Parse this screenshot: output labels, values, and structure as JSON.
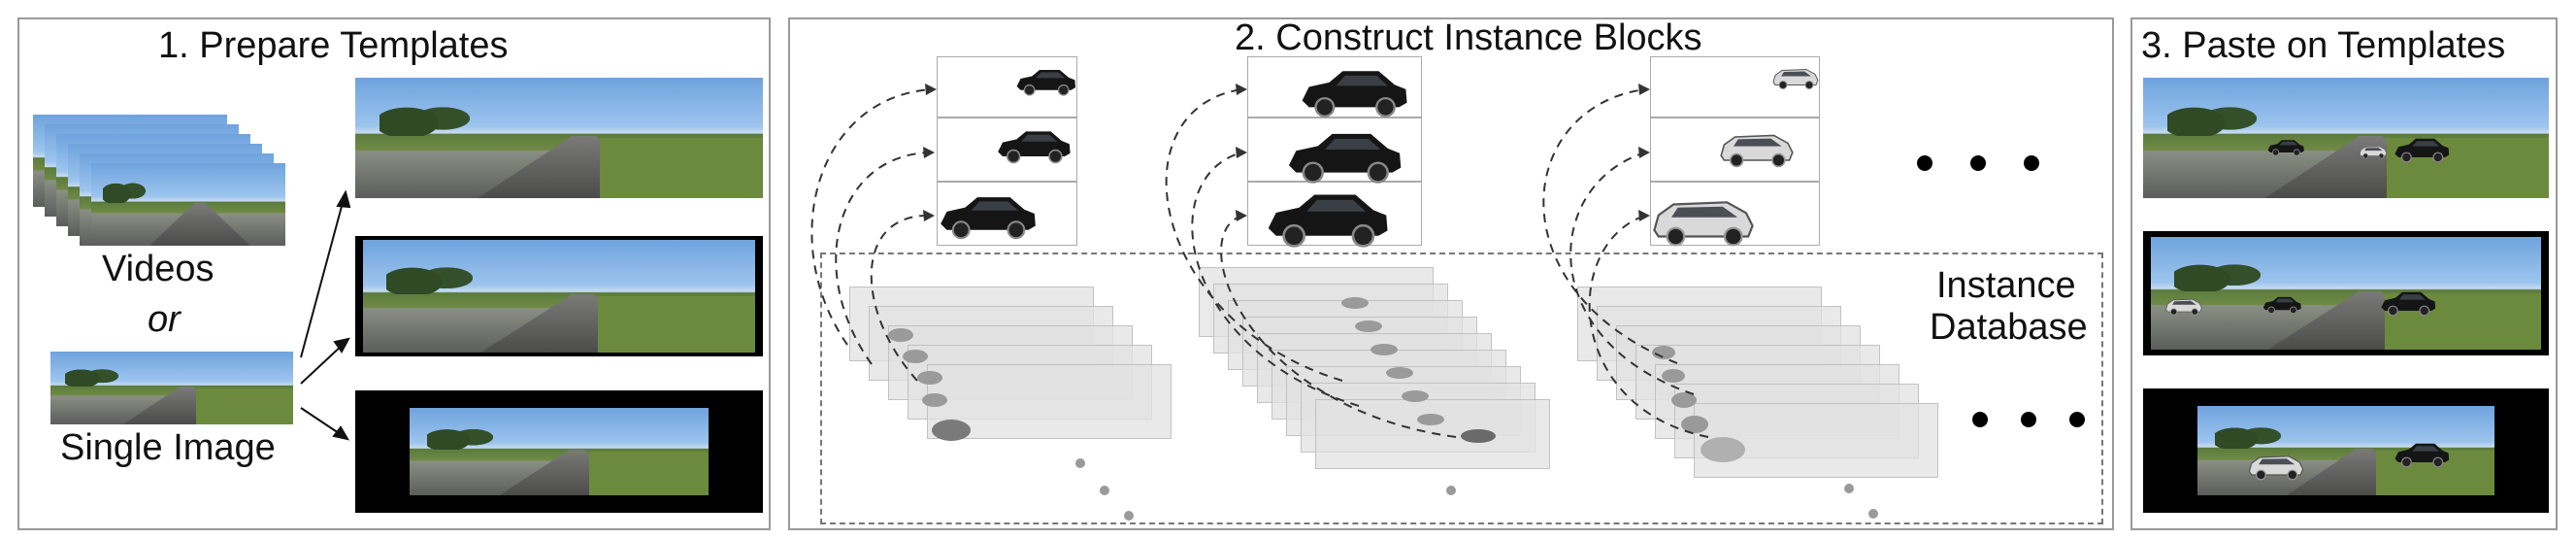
{
  "panels": {
    "prepare": {
      "title": "1. Prepare Templates"
    },
    "construct": {
      "title": "2. Construct Instance Blocks"
    },
    "paste": {
      "title": "3. Paste on Templates"
    }
  },
  "labels": {
    "videos": "Videos",
    "or": "or",
    "single_image": "Single Image",
    "instance_database_line1": "Instance",
    "instance_database_line2": "Database"
  },
  "colors": {
    "border": "#9a9a9a",
    "dashed": "#777777",
    "car": "#1a1a1a"
  }
}
